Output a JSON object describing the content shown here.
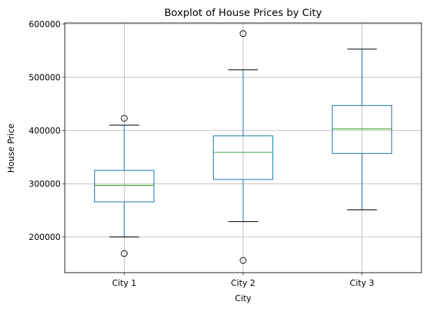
{
  "chart_data": {
    "type": "boxplot",
    "title": "Boxplot of House Prices by City",
    "xlabel": "City",
    "ylabel": "House Price",
    "categories": [
      "City 1",
      "City 2",
      "City 3"
    ],
    "ylim": [
      133000,
      602000
    ],
    "yticks": [
      200000,
      300000,
      400000,
      500000,
      600000
    ],
    "ytick_labels": [
      "200000",
      "300000",
      "400000",
      "500000",
      "600000"
    ],
    "grid": true,
    "colors": {
      "box": "#1f77b4",
      "median": "#2ca02c",
      "grid": "#b0b0b0",
      "cap": "#000000"
    },
    "series": [
      {
        "category": "City 1",
        "whisker_low": 200000,
        "q1": 266000,
        "median": 297000,
        "q3": 325000,
        "whisker_high": 410000,
        "outliers": [
          423000,
          169000
        ]
      },
      {
        "category": "City 2",
        "whisker_low": 229000,
        "q1": 308000,
        "median": 359000,
        "q3": 390000,
        "whisker_high": 514000,
        "outliers": [
          582000,
          156000
        ]
      },
      {
        "category": "City 3",
        "whisker_low": 251000,
        "q1": 357000,
        "median": 403000,
        "q3": 447000,
        "whisker_high": 553000,
        "outliers": []
      }
    ]
  }
}
